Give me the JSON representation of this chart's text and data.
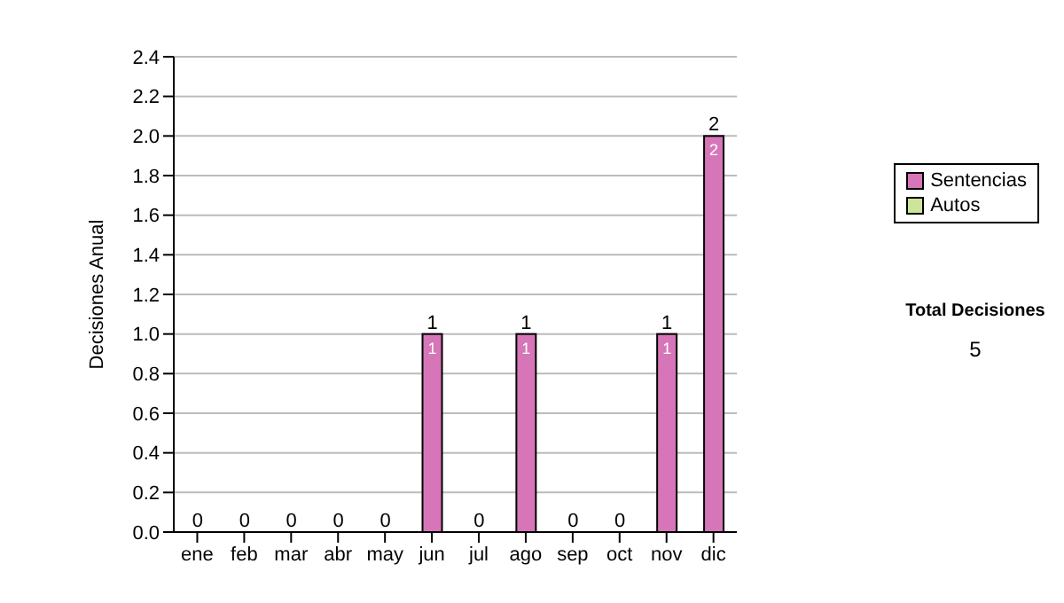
{
  "chart_data": {
    "type": "bar",
    "ylabel": "Decisiones Anual",
    "categories": [
      "ene",
      "feb",
      "mar",
      "abr",
      "may",
      "jun",
      "jul",
      "ago",
      "sep",
      "oct",
      "nov",
      "dic"
    ],
    "series": [
      {
        "name": "Sentencias",
        "color": "#d676b8",
        "values": [
          0,
          0,
          0,
          0,
          0,
          1,
          0,
          1,
          0,
          0,
          1,
          2
        ],
        "value_labels": [
          null,
          null,
          null,
          null,
          null,
          "1",
          null,
          "1",
          null,
          null,
          "1",
          "2"
        ]
      },
      {
        "name": "Autos",
        "color": "#cce59a",
        "values": [
          0,
          0,
          0,
          0,
          0,
          0,
          0,
          0,
          0,
          0,
          0,
          0
        ]
      }
    ],
    "stacked": true,
    "totals": [
      "0",
      "0",
      "0",
      "0",
      "0",
      "1",
      "0",
      "1",
      "0",
      "0",
      "1",
      "2"
    ],
    "ylim": [
      0,
      2.4
    ],
    "yticks": [
      {
        "value": 0,
        "label": "0.0"
      },
      0.2,
      0.4,
      0.6,
      0.8,
      {
        "value": 1,
        "label": "1.0"
      },
      1.2,
      1.4,
      1.6,
      1.8,
      {
        "value": 2,
        "label": "2.0"
      },
      2.2,
      2.4
    ],
    "grid": "y",
    "legend": "right",
    "annotations": [
      "Total Decisiones",
      "5"
    ]
  }
}
